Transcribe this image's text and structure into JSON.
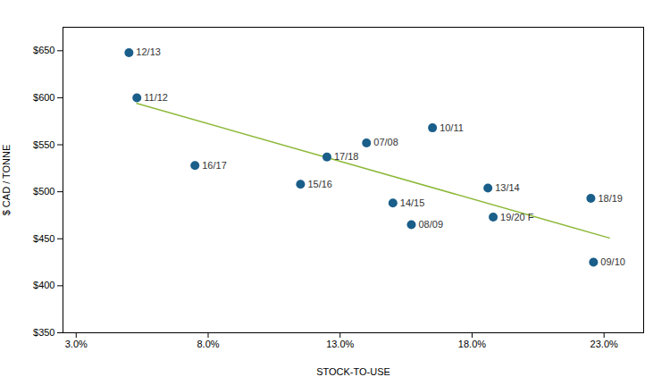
{
  "chart_data": {
    "type": "scatter",
    "xlabel": "STOCK-TO-USE",
    "ylabel": "$ CAD / TONNE",
    "x": [
      0.05,
      0.053,
      0.075,
      0.115,
      0.125,
      0.14,
      0.165,
      0.15,
      0.157,
      0.186,
      0.188,
      0.225,
      0.226
    ],
    "values": [
      648,
      600,
      528,
      508,
      537,
      552,
      568,
      488,
      465,
      504,
      473,
      493,
      425
    ],
    "labels": [
      "12/13",
      "11/12",
      "16/17",
      "15/16",
      "17/18",
      "07/08",
      "10/11",
      "14/15",
      "08/09",
      "13/14",
      "19/20 F",
      "18/19",
      "09/10"
    ],
    "color": "#1a5e8a",
    "marker": "circle",
    "trendline": {
      "x": [
        0.053,
        0.232
      ],
      "values": [
        593.94,
        450.83
      ],
      "color": "#8DB93A",
      "line_style": "solid"
    },
    "xlim": [
      0.025,
      0.245
    ],
    "ylim": [
      350,
      675
    ],
    "xticks": [
      {
        "value": 0.03,
        "label": "3.0%"
      },
      {
        "value": 0.08,
        "label": "8.0%"
      },
      {
        "value": 0.13,
        "label": "13.0%"
      },
      {
        "value": 0.18,
        "label": "18.0%"
      },
      {
        "value": 0.23,
        "label": "23.0%"
      }
    ],
    "yticks": [
      {
        "value": 350,
        "label": "$350"
      },
      {
        "value": 400,
        "label": "$400"
      },
      {
        "value": 450,
        "label": "$450"
      },
      {
        "value": 500,
        "label": "$500"
      },
      {
        "value": 550,
        "label": "$550"
      },
      {
        "value": 600,
        "label": "$600"
      },
      {
        "value": 650,
        "label": "$650"
      }
    ],
    "grid": false
  }
}
